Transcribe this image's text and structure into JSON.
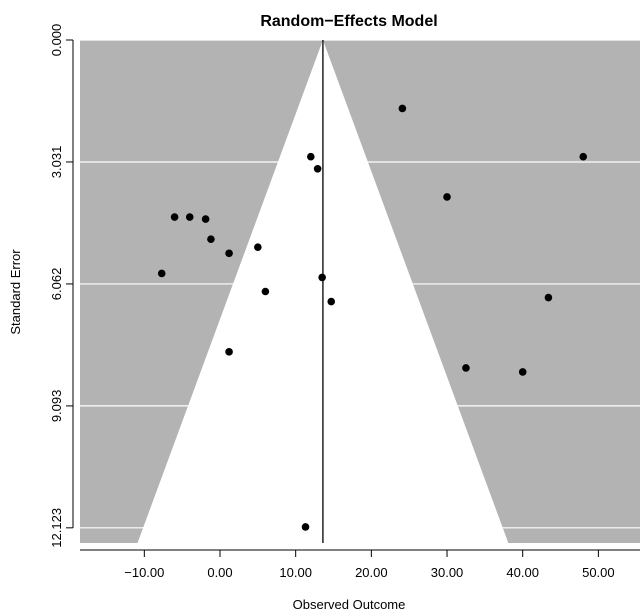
{
  "chart_data": {
    "type": "scatter",
    "subtype": "funnel-plot",
    "title": "Random−Effects Model",
    "xlabel": "Observed Outcome",
    "ylabel": "Standard Error",
    "x_ticks": [
      -10,
      0,
      10,
      20,
      30,
      40,
      50
    ],
    "x_tick_labels": [
      "−10.00",
      "0.00",
      "10.00",
      "20.00",
      "30.00",
      "40.00",
      "50.00"
    ],
    "y_ticks": [
      0,
      3.031,
      6.062,
      9.093,
      12.123
    ],
    "y_tick_labels": [
      "0.000",
      "3.031",
      "6.062",
      "9.093",
      "12.123"
    ],
    "y_reversed": true,
    "y_rotated_tick_labels": true,
    "xlim": [
      -18.5,
      55.5
    ],
    "ylim": [
      0,
      12.5
    ],
    "summary_estimate": 13.6,
    "funnel_half_width_per_se": 1.96,
    "colors": {
      "background_region": "#b3b3b3",
      "funnel": "#ffffff",
      "points": "#000000",
      "gridlines": "#ffffff",
      "vertical_line": "#000000"
    },
    "points": [
      {
        "x": 24.1,
        "y": 1.7
      },
      {
        "x": 48.0,
        "y": 2.9
      },
      {
        "x": 12.0,
        "y": 2.9
      },
      {
        "x": 12.9,
        "y": 3.2
      },
      {
        "x": 30.0,
        "y": 3.9
      },
      {
        "x": -6.0,
        "y": 4.4
      },
      {
        "x": -4.0,
        "y": 4.4
      },
      {
        "x": -1.9,
        "y": 4.45
      },
      {
        "x": -1.2,
        "y": 4.95
      },
      {
        "x": 1.2,
        "y": 5.3
      },
      {
        "x": 5.0,
        "y": 5.15
      },
      {
        "x": -7.7,
        "y": 5.8
      },
      {
        "x": 13.5,
        "y": 5.9
      },
      {
        "x": 6.0,
        "y": 6.25
      },
      {
        "x": 14.7,
        "y": 6.5
      },
      {
        "x": 43.4,
        "y": 6.4
      },
      {
        "x": 1.2,
        "y": 7.75
      },
      {
        "x": 32.5,
        "y": 8.15
      },
      {
        "x": 40.0,
        "y": 8.25
      },
      {
        "x": 11.3,
        "y": 12.1
      }
    ]
  }
}
